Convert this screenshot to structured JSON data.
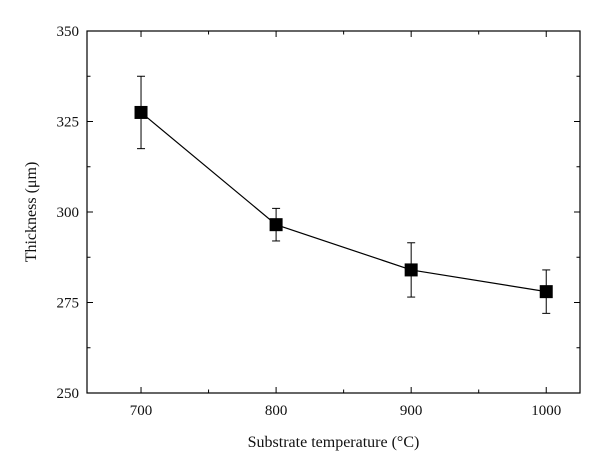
{
  "chart_data": {
    "type": "line",
    "title": "",
    "xlabel": "Substrate temperature (°C)",
    "ylabel": "Thickness (μm)",
    "xlim": [
      660,
      1025
    ],
    "ylim": [
      250,
      350
    ],
    "x_ticks": [
      700,
      800,
      900,
      1000
    ],
    "y_ticks": [
      250,
      275,
      300,
      325,
      350
    ],
    "grid": false,
    "legend": "none",
    "marker": "filled-square",
    "series": [
      {
        "x": [
          700,
          800,
          900,
          1000
        ],
        "y": [
          327.5,
          296.5,
          284,
          278
        ],
        "error": [
          10,
          4.5,
          7.5,
          6
        ]
      }
    ],
    "colors": {
      "line": "#000000",
      "marker": "#000000",
      "axis": "#000000"
    }
  }
}
